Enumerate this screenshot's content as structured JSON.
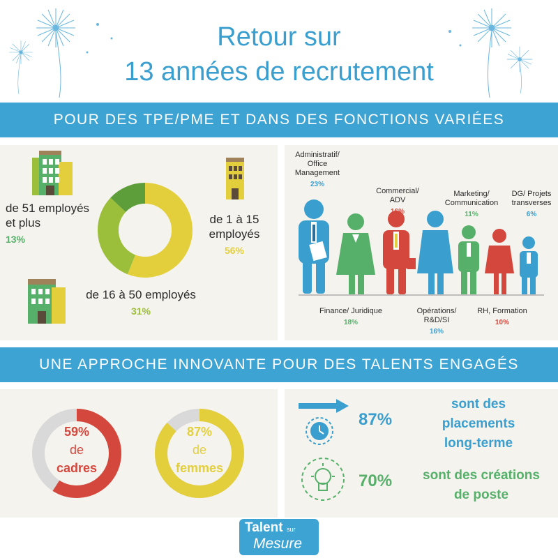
{
  "header": {
    "title_line1": "Retour sur",
    "title_line2": "13 années de recrutement"
  },
  "band1": "POUR DES TPE/PME ET DANS DES FONCTIONS VARIÉES",
  "band2": "UNE APPROCHE INNOVANTE POUR DES TALENTS ENGAGÉS",
  "company_size": {
    "large": {
      "line1": "de 51 employés",
      "line2": "et plus",
      "pct": "13%"
    },
    "small": {
      "line1": "de 1 à 15",
      "line2": "employés",
      "pct": "56%"
    },
    "medium": {
      "line1": "de 16 à 50 employés",
      "pct": "31%"
    }
  },
  "chart_data": {
    "type": "pie",
    "categories": [
      "de 1 à 15 employés",
      "de 16 à 50 employés",
      "de 51 employés et plus"
    ],
    "values": [
      56,
      31,
      13
    ],
    "colors": [
      "#e3cf3c",
      "#9bbf3a",
      "#5e9e3a"
    ]
  },
  "functions": {
    "top": [
      {
        "name": "Administratif/ Office Management",
        "pct": "23%"
      },
      {
        "name": "Commercial/ ADV",
        "pct": "16%"
      },
      {
        "name": "Marketing/ Communication",
        "pct": "11%"
      },
      {
        "name": "DG/ Projets transverses",
        "pct": "6%"
      }
    ],
    "bottom": [
      {
        "name": "Finance/ Juridique",
        "pct": "18%"
      },
      {
        "name": "Opérations/ R&D/SI",
        "pct": "16%"
      },
      {
        "name": "RH, Formation",
        "pct": "10%"
      }
    ]
  },
  "rings": {
    "cadres": {
      "pct": "59%",
      "line1": "de",
      "line2": "cadres",
      "value": 59
    },
    "femmes": {
      "pct": "87%",
      "line1": "de",
      "line2": "femmes",
      "value": 87
    }
  },
  "stats": {
    "placements": {
      "value": "87%",
      "l1": "sont des",
      "l2": "placements",
      "l3": "long-terme"
    },
    "creations": {
      "value": "70%",
      "l1": "sont des créations",
      "l2": "de poste"
    }
  },
  "logo": {
    "line1": "Talent",
    "line2": "sur",
    "line3": "Mesure"
  },
  "colors": {
    "blue": "#3ca3d3",
    "green": "#56b06a",
    "red": "#d4473c",
    "yellow": "#e3cf3c",
    "lime": "#9bbf3a",
    "grey": "#d9d9d9"
  }
}
